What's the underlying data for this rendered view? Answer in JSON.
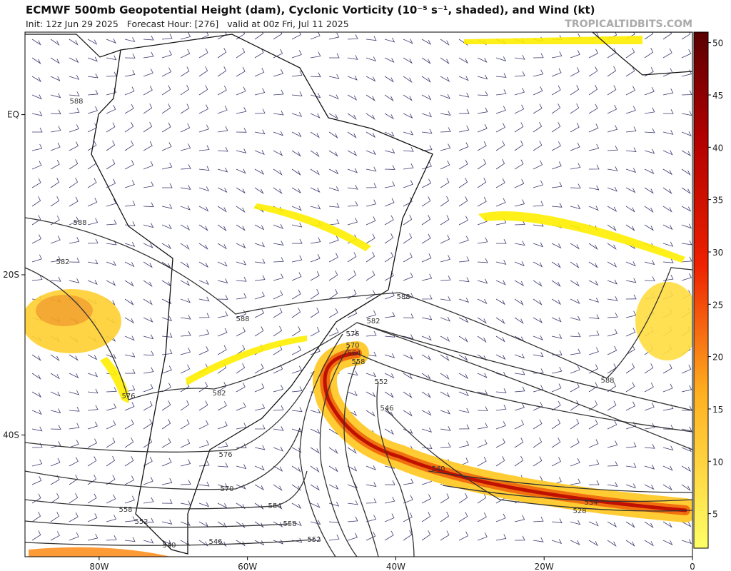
{
  "header": {
    "title": "ECMWF 500mb Geopotential Height (dam), Cyclonic Vorticity (10⁻⁵ s⁻¹, shaded), and Wind (kt)",
    "subtitle": "Init: 12z Jun 29 2025   Forecast Hour: [276]   valid at 00z Fri, Jul 11 2025",
    "watermark": "TROPICALTIDBITS.COM"
  },
  "map": {
    "lon_range": [
      -90,
      0
    ],
    "lat_range": [
      10.3,
      -55.2
    ],
    "lon_ticks": [
      {
        "value": -80,
        "label": "80W"
      },
      {
        "value": -60,
        "label": "60W"
      },
      {
        "value": -40,
        "label": "40W"
      },
      {
        "value": -20,
        "label": "20W"
      },
      0
    ],
    "lat_ticks": [
      {
        "value": 0,
        "label": "EQ"
      },
      {
        "value": -20,
        "label": "20S"
      },
      {
        "value": -40,
        "label": "40S"
      }
    ]
  },
  "colorbar": {
    "range": [
      1.7,
      51
    ],
    "ticks": [
      5,
      10,
      15,
      20,
      25,
      30,
      35,
      40,
      45,
      50
    ]
  },
  "contour_labels": [
    588,
    588,
    582,
    588,
    588,
    582,
    576,
    570,
    564,
    558,
    552,
    546,
    540,
    534,
    528,
    582,
    588,
    576,
    576,
    570,
    564,
    558,
    552,
    546,
    540,
    558,
    552
  ]
}
